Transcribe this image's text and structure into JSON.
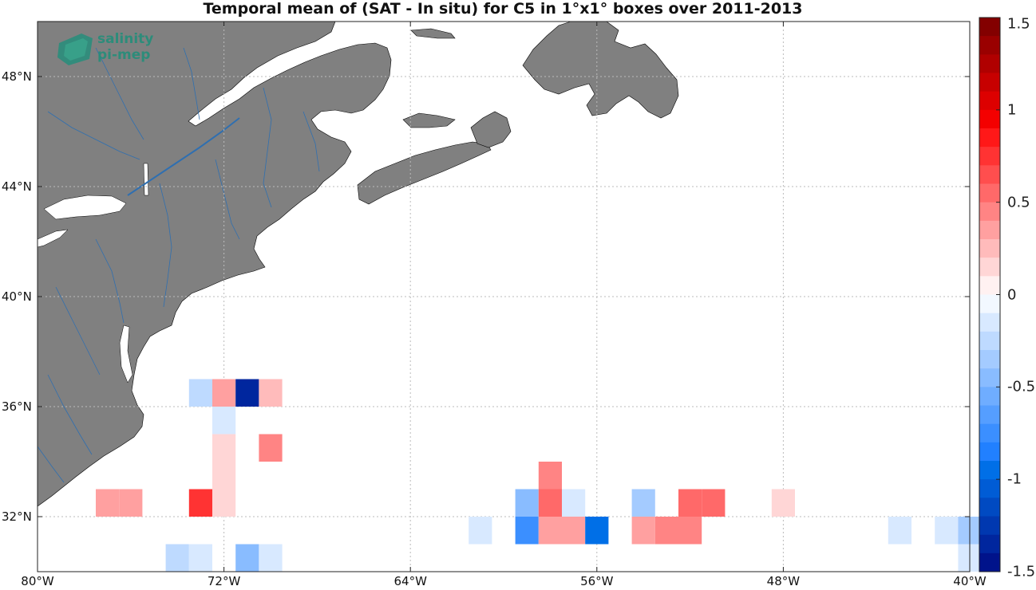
{
  "title": "Temporal mean of (SAT - In situ) for C5 in 1°x1° boxes over 2011-2013",
  "logo": {
    "line1": "salinity",
    "line2": "pi-mep"
  },
  "map": {
    "lon_range": [
      -80,
      -40
    ],
    "lat_range": [
      30,
      50
    ],
    "land_color": "#808080",
    "river_color": "#2f6fb0",
    "coast_color": "#000000",
    "grid_style": "dotted"
  },
  "lon_ticks": [
    {
      "value": -80,
      "label": "80°W"
    },
    {
      "value": -72,
      "label": "72°W"
    },
    {
      "value": -64,
      "label": "64°W"
    },
    {
      "value": -56,
      "label": "56°W"
    },
    {
      "value": -48,
      "label": "48°W"
    },
    {
      "value": -40,
      "label": "40°W"
    }
  ],
  "lat_ticks": [
    {
      "value": 48,
      "label": "48°N"
    },
    {
      "value": 44,
      "label": "44°N"
    },
    {
      "value": 40,
      "label": "40°N"
    },
    {
      "value": 36,
      "label": "36°N"
    },
    {
      "value": 32,
      "label": "32°N"
    }
  ],
  "colorbar": {
    "min": -1.5,
    "max": 1.5,
    "steps": 30,
    "tick_values": [
      1.5,
      1,
      0.5,
      0,
      -0.5,
      -1,
      -1.5
    ],
    "tick_labels": [
      "1.5",
      "1",
      "0.5",
      "0",
      "-0.5",
      "-1",
      "-1.5"
    ]
  },
  "chart_data": {
    "type": "heatmap",
    "title": "Temporal mean of (SAT - In situ) for C5 in 1°x1° boxes over 2011-2013",
    "cell_size_deg": 1,
    "cells": [
      {
        "lon": -73.0,
        "lat": 36.5,
        "value": -0.25
      },
      {
        "lon": -72.0,
        "lat": 36.5,
        "value": 0.35
      },
      {
        "lon": -71.0,
        "lat": 36.5,
        "value": -1.35
      },
      {
        "lon": -70.0,
        "lat": 36.5,
        "value": 0.25
      },
      {
        "lon": -72.0,
        "lat": 35.5,
        "value": -0.1
      },
      {
        "lon": -72.0,
        "lat": 34.5,
        "value": 0.1
      },
      {
        "lon": -70.0,
        "lat": 34.5,
        "value": 0.45
      },
      {
        "lon": -72.0,
        "lat": 33.5,
        "value": 0.1
      },
      {
        "lon": -77.0,
        "lat": 32.5,
        "value": 0.3
      },
      {
        "lon": -76.0,
        "lat": 32.5,
        "value": 0.3
      },
      {
        "lon": -73.0,
        "lat": 32.5,
        "value": 0.75
      },
      {
        "lon": -72.0,
        "lat": 32.5,
        "value": 0.1
      },
      {
        "lon": -58.0,
        "lat": 33.5,
        "value": 0.4
      },
      {
        "lon": -59.0,
        "lat": 32.5,
        "value": -0.45
      },
      {
        "lon": -58.0,
        "lat": 32.5,
        "value": 0.55
      },
      {
        "lon": -57.0,
        "lat": 32.5,
        "value": -0.1
      },
      {
        "lon": -54.0,
        "lat": 32.5,
        "value": -0.4
      },
      {
        "lon": -52.0,
        "lat": 32.5,
        "value": 0.55
      },
      {
        "lon": -51.0,
        "lat": 32.5,
        "value": 0.55
      },
      {
        "lon": -48.0,
        "lat": 32.5,
        "value": 0.1
      },
      {
        "lon": -61.0,
        "lat": 31.5,
        "value": -0.1
      },
      {
        "lon": -59.0,
        "lat": 31.5,
        "value": -0.75
      },
      {
        "lon": -58.0,
        "lat": 31.5,
        "value": 0.3
      },
      {
        "lon": -57.0,
        "lat": 31.5,
        "value": 0.3
      },
      {
        "lon": -56.0,
        "lat": 31.5,
        "value": -1.0
      },
      {
        "lon": -54.0,
        "lat": 31.5,
        "value": 0.3
      },
      {
        "lon": -53.0,
        "lat": 31.5,
        "value": 0.45
      },
      {
        "lon": -52.0,
        "lat": 31.5,
        "value": 0.45
      },
      {
        "lon": -43.0,
        "lat": 31.5,
        "value": -0.1
      },
      {
        "lon": -41.0,
        "lat": 31.5,
        "value": -0.1
      },
      {
        "lon": -40.0,
        "lat": 31.5,
        "value": -0.3
      },
      {
        "lon": -74.0,
        "lat": 30.5,
        "value": -0.25
      },
      {
        "lon": -73.0,
        "lat": 30.5,
        "value": -0.1
      },
      {
        "lon": -71.0,
        "lat": 30.5,
        "value": -0.45
      },
      {
        "lon": -70.0,
        "lat": 30.5,
        "value": -0.1
      },
      {
        "lon": -40.0,
        "lat": 30.5,
        "value": -0.1
      }
    ]
  }
}
